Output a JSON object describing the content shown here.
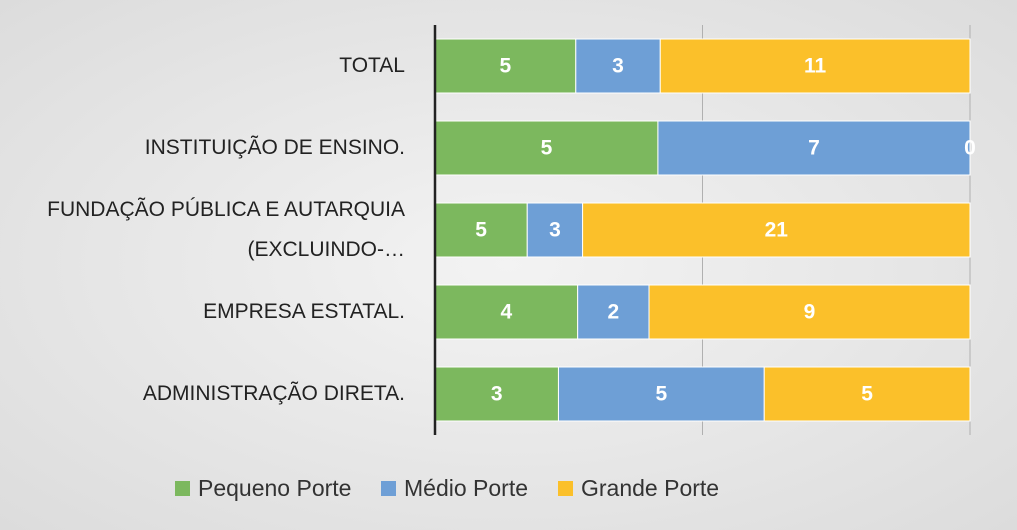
{
  "chart_data": {
    "type": "bar",
    "orientation": "horizontal",
    "stacked": "percent",
    "categories": [
      "TOTAL",
      "INSTITUIÇÃO DE ENSINO.",
      "FUNDAÇÃO PÚBLICA E AUTARQUIA (EXCLUINDO-…",
      "EMPRESA ESTATAL.",
      "ADMINISTRAÇÃO DIRETA."
    ],
    "series": [
      {
        "name": "Pequeno Porte",
        "color": "#7cb85e",
        "values": [
          5,
          5,
          5,
          4,
          3
        ]
      },
      {
        "name": "Médio Porte",
        "color": "#6e9fd6",
        "values": [
          3,
          7,
          3,
          2,
          5
        ]
      },
      {
        "name": "Grande Porte",
        "color": "#fbc02a",
        "values": [
          11,
          0,
          21,
          9,
          5
        ]
      }
    ],
    "xlim": [
      0,
      100
    ],
    "xticks": [
      0,
      50,
      100
    ],
    "grid": true,
    "legend": "bottom"
  }
}
